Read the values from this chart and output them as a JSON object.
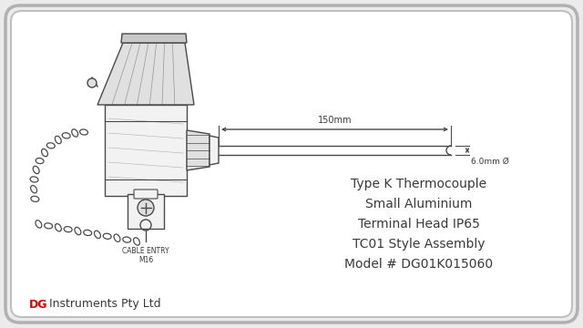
{
  "bg_color": "#ebebeb",
  "inner_bg": "#ffffff",
  "border_outer_color": "#b0b0b0",
  "border_inner_color": "#c0c0c0",
  "line_color": "#4a4a4a",
  "fill_light": "#f2f2f2",
  "fill_mid": "#e0e0e0",
  "fill_dark": "#c8c8c8",
  "text_color": "#3a3a3a",
  "red_color": "#e00000",
  "title_lines": [
    "Type K Thermocouple",
    "Small Aluminium",
    "Terminal Head IP65",
    "TC01 Style Assembly",
    "Model # DG01K015060"
  ],
  "brand_dg": "DG",
  "brand_rest": " Instruments Pty Ltd",
  "dim_label": "150mm",
  "diam_label": "6.0mm Ø",
  "cable_label1": "CABLE ENTRY",
  "cable_label2": "M16",
  "figsize": [
    6.4,
    3.6
  ],
  "dpi": 100
}
